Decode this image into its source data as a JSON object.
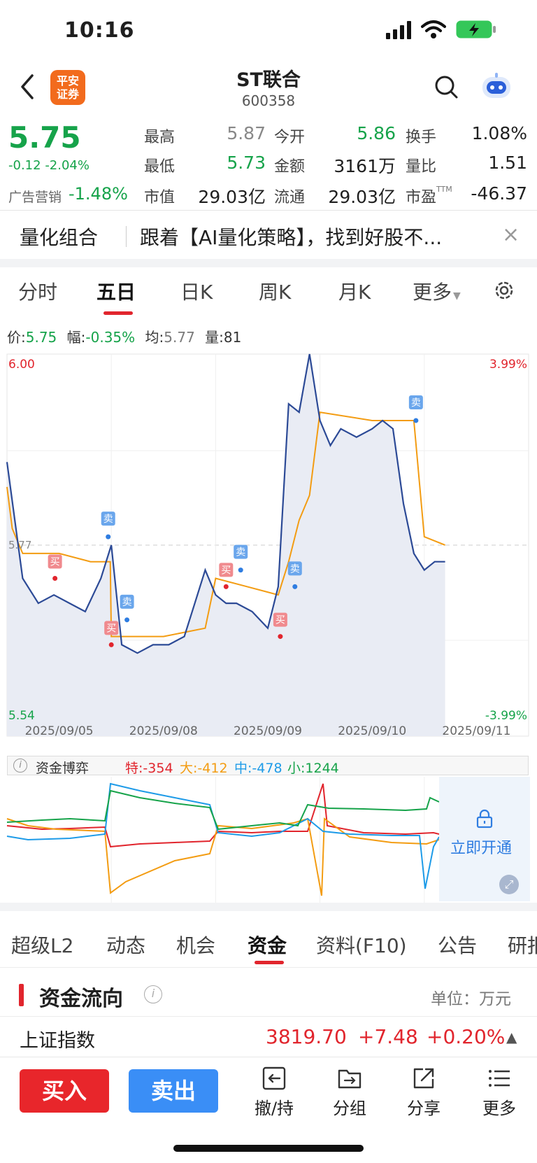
{
  "status": {
    "time": "10:16"
  },
  "header": {
    "logo_text": "平安\n证券",
    "name": "ST联合",
    "code": "600358"
  },
  "quote": {
    "price": "5.75",
    "change": "-0.12",
    "change_pct": "-2.04%",
    "ad_label": "广告营销",
    "ad_value": "-1.48%",
    "fields": [
      {
        "label": "最高",
        "value": "5.87"
      },
      {
        "label": "今开",
        "value": "5.86"
      },
      {
        "label": "换手",
        "value": "1.08%"
      },
      {
        "label": "最低",
        "value": "5.73"
      },
      {
        "label": "金额",
        "value": "3161万"
      },
      {
        "label": "量比",
        "value": "1.51"
      },
      {
        "label": "市值",
        "value": "29.03亿"
      },
      {
        "label": "流通",
        "value": "29.03亿"
      },
      {
        "label": "市盈",
        "value": "-46.37"
      }
    ],
    "pe_sup": "TTM"
  },
  "banner": {
    "title": "量化组合",
    "text": "跟着【AI量化策略】，找到好股不...",
    "close": "×"
  },
  "chart_tabs": [
    "分时",
    "五日",
    "日K",
    "周K",
    "月K",
    "更多"
  ],
  "info_line": {
    "price_label": "价:",
    "price": "5.75",
    "amp_label": "幅:",
    "amp": "-0.35%",
    "avg_label": "均:",
    "avg": "5.77",
    "vol_label": "量:",
    "vol": "81"
  },
  "chart_data": {
    "type": "line",
    "title": "",
    "y_top": "6.00",
    "y_bottom": "5.54",
    "y_mid": "5.77",
    "pct_top": "3.99%",
    "pct_bottom": "-3.99%",
    "ylim": [
      5.54,
      6.0
    ],
    "x_dates": [
      "2025/09/05",
      "2025/09/08",
      "2025/09/09",
      "2025/09/10",
      "2025/09/11"
    ],
    "series": [
      {
        "color": "#2c4a96",
        "x": [
          0,
          0.15,
          0.3,
          0.45,
          0.6,
          0.75,
          0.9,
          1.0,
          1.1,
          1.25,
          1.4,
          1.55,
          1.7,
          1.8,
          1.9,
          2.0,
          2.1,
          2.2,
          2.35,
          2.5,
          2.6,
          2.7,
          2.8,
          2.9,
          3.0,
          3.1,
          3.2,
          3.35,
          3.5,
          3.6,
          3.7,
          3.8,
          3.9,
          4.0,
          4.1,
          4.15,
          4.2
        ],
        "values": [
          5.87,
          5.73,
          5.7,
          5.71,
          5.7,
          5.69,
          5.73,
          5.77,
          5.65,
          5.64,
          5.65,
          5.65,
          5.66,
          5.7,
          5.74,
          5.71,
          5.7,
          5.7,
          5.69,
          5.67,
          5.72,
          5.94,
          5.93,
          6.0,
          5.92,
          5.89,
          5.91,
          5.9,
          5.91,
          5.92,
          5.91,
          5.82,
          5.76,
          5.74,
          5.75,
          5.75,
          5.75
        ]
      },
      {
        "color": "#f39c12",
        "x": [
          0,
          0.05,
          0.15,
          0.3,
          0.5,
          0.8,
          0.99,
          1.0,
          1.3,
          1.5,
          1.9,
          2.0,
          2.3,
          2.6,
          2.7,
          2.8,
          2.9,
          3.0,
          3.5,
          3.9,
          4.0,
          4.2
        ],
        "values": [
          5.84,
          5.79,
          5.76,
          5.76,
          5.76,
          5.75,
          5.75,
          5.66,
          5.66,
          5.66,
          5.67,
          5.73,
          5.72,
          5.71,
          5.75,
          5.8,
          5.83,
          5.93,
          5.92,
          5.92,
          5.78,
          5.77
        ]
      }
    ],
    "trades": [
      {
        "label": "买",
        "x": 0.46,
        "value": 5.73,
        "kind": "buy"
      },
      {
        "label": "卖",
        "x": 0.97,
        "value": 5.78,
        "kind": "sell"
      },
      {
        "label": "买",
        "x": 1.0,
        "value": 5.65,
        "kind": "buy"
      },
      {
        "label": "卖",
        "x": 1.15,
        "value": 5.68,
        "kind": "sell"
      },
      {
        "label": "买",
        "x": 2.1,
        "value": 5.72,
        "kind": "buy"
      },
      {
        "label": "卖",
        "x": 2.24,
        "value": 5.74,
        "kind": "sell"
      },
      {
        "label": "买",
        "x": 2.62,
        "value": 5.66,
        "kind": "buy"
      },
      {
        "label": "卖",
        "x": 2.76,
        "value": 5.72,
        "kind": "sell"
      },
      {
        "label": "卖",
        "x": 3.92,
        "value": 5.92,
        "kind": "sell"
      }
    ]
  },
  "money_game": {
    "label": "资金博弈",
    "te_label": "特:",
    "te": "-354",
    "da_label": "大:",
    "da": "-412",
    "zhong_label": "中:",
    "zhong": "-478",
    "xiao_label": "小:",
    "xiao": "1244",
    "unlock": "立即开通"
  },
  "bottom_tabs": [
    "超级L2",
    "动态",
    "机会",
    "资金",
    "资料(F10)",
    "公告",
    "研报"
  ],
  "flow": {
    "title": "资金流向",
    "unit": "单位：万元"
  },
  "index": {
    "name": "上证指数",
    "value": "3819.70",
    "change": "+7.48",
    "pct": "+0.20%",
    "arrow": "▲"
  },
  "actions": {
    "buy": "买入",
    "sell": "卖出",
    "items": [
      "撤/持",
      "分组",
      "分享",
      "更多"
    ]
  }
}
